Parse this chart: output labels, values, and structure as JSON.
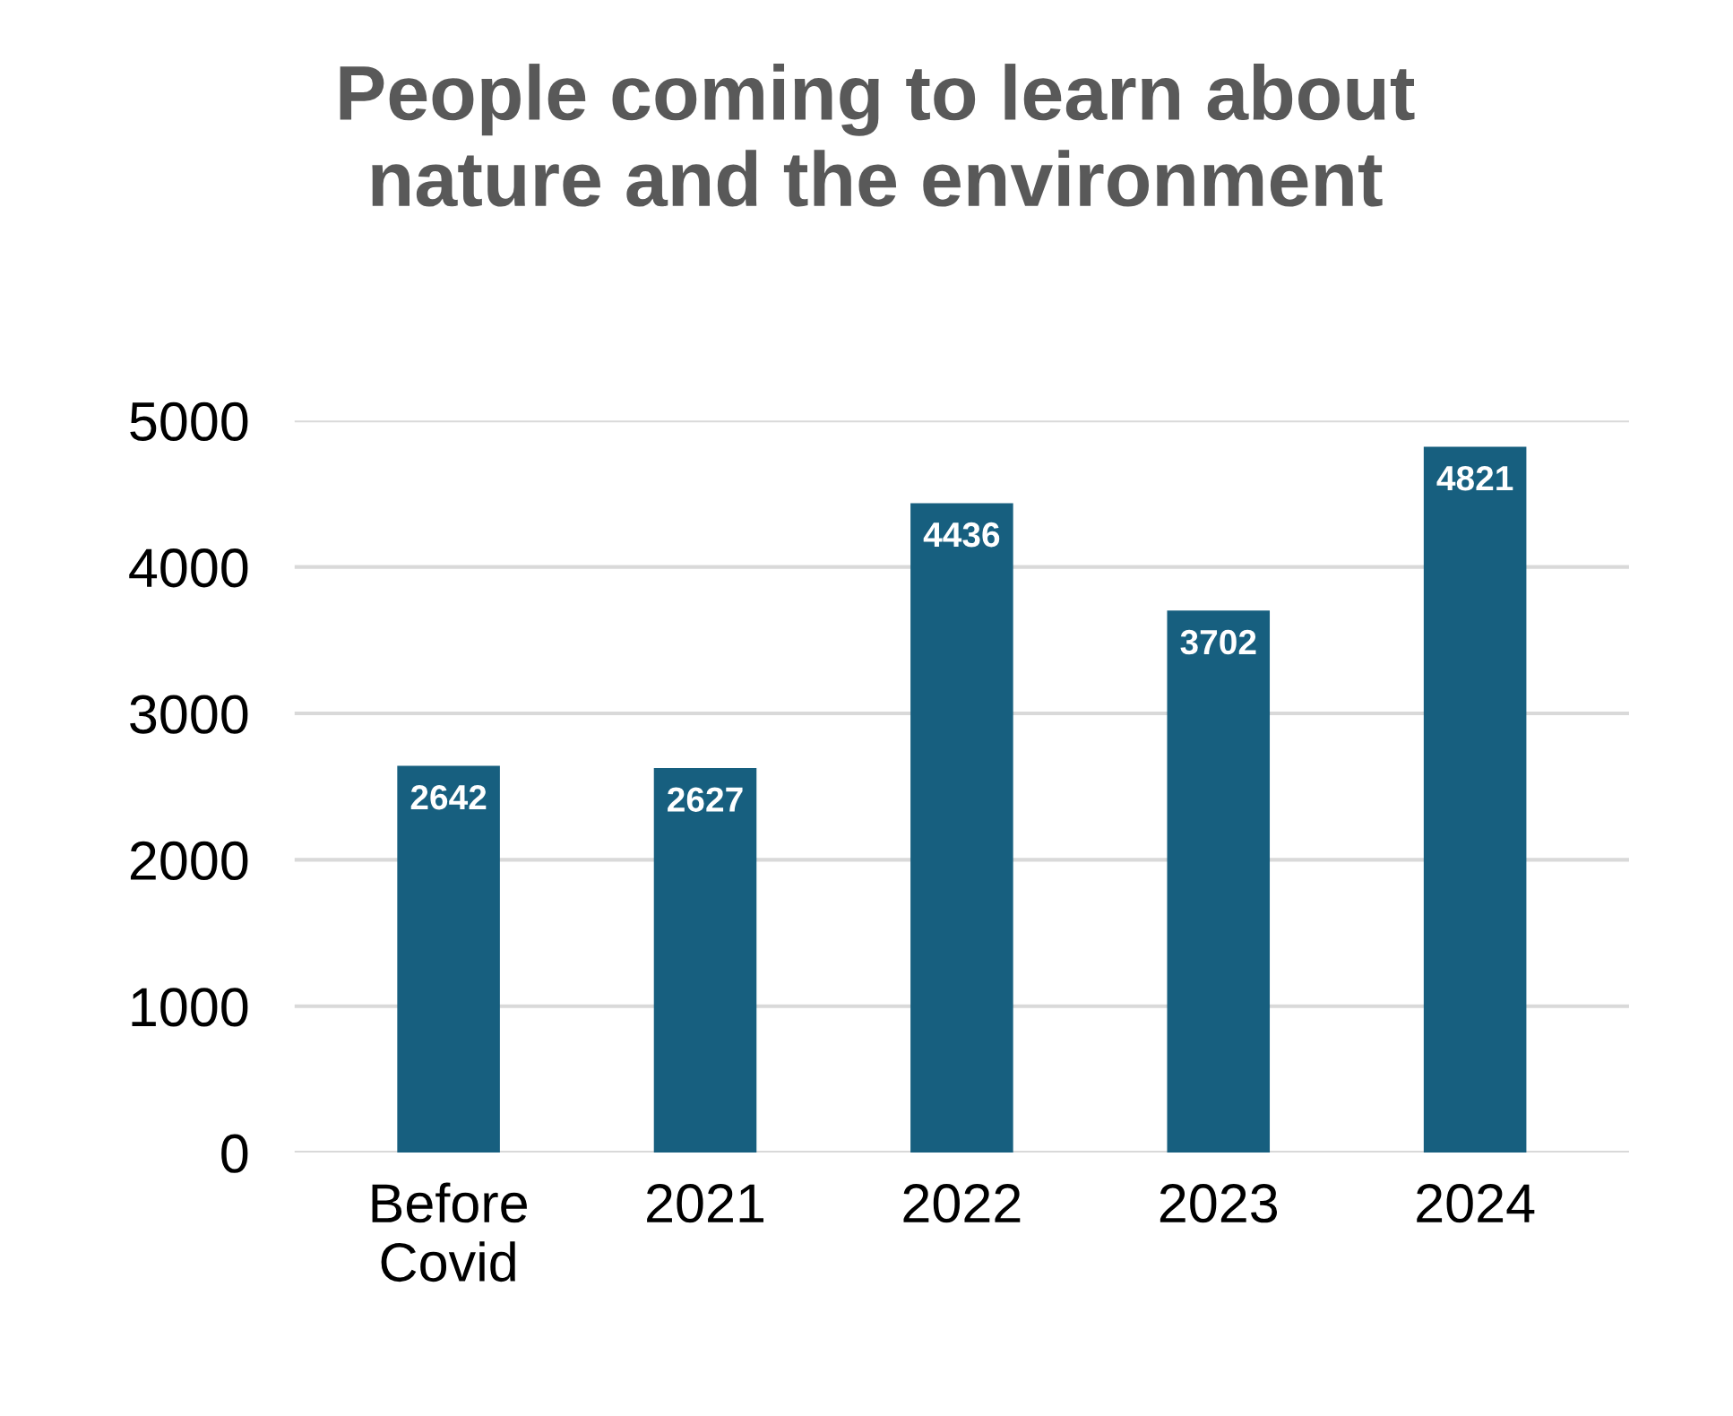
{
  "chart_data": {
    "type": "bar",
    "title": "People coming to learn about\nnature and the environment",
    "categories": [
      "Before\nCovid",
      "2021",
      "2022",
      "2023",
      "2024"
    ],
    "values": [
      2642,
      2627,
      4436,
      3702,
      4821
    ],
    "color": "#175f7f",
    "ylim": [
      0,
      5000
    ],
    "yticks": [
      0,
      1000,
      2000,
      3000,
      4000,
      5000
    ],
    "grid": "y",
    "data_labels": true
  }
}
